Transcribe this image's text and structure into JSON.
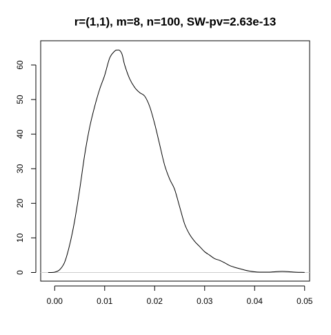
{
  "chart_data": {
    "type": "line",
    "title": "r=(1,1), m=8, n=100, SW-pv=2.63e-13",
    "xlabel": "",
    "ylabel": "",
    "xlim": [
      -0.0028,
      0.051
    ],
    "ylim": [
      -2.5,
      67
    ],
    "grid": false,
    "zero_line": true,
    "xticks": [
      0.0,
      0.01,
      0.02,
      0.03,
      0.04,
      0.05
    ],
    "xtick_labels": [
      "0.00",
      "0.01",
      "0.02",
      "0.03",
      "0.04",
      "0.05"
    ],
    "yticks": [
      0,
      10,
      20,
      30,
      40,
      50,
      60
    ],
    "ytick_labels": [
      "0",
      "10",
      "20",
      "30",
      "40",
      "50",
      "60"
    ],
    "series": [
      {
        "color": "#000000",
        "x": [
          -0.0013,
          0.0,
          0.001,
          0.002,
          0.003,
          0.004,
          0.005,
          0.006,
          0.007,
          0.008,
          0.009,
          0.01,
          0.011,
          0.012,
          0.0125,
          0.013,
          0.0135,
          0.014,
          0.015,
          0.016,
          0.017,
          0.018,
          0.019,
          0.02,
          0.021,
          0.022,
          0.023,
          0.024,
          0.025,
          0.026,
          0.027,
          0.028,
          0.029,
          0.03,
          0.031,
          0.032,
          0.033,
          0.034,
          0.035,
          0.036,
          0.037,
          0.038,
          0.039,
          0.04,
          0.041,
          0.042,
          0.043,
          0.044,
          0.045,
          0.046,
          0.047,
          0.048,
          0.049,
          0.05
        ],
        "y": [
          0,
          0.1,
          0.8,
          3,
          8,
          15,
          24,
          34,
          42,
          48,
          53,
          57,
          62,
          64,
          64.3,
          64.2,
          63,
          60,
          56,
          53.5,
          52,
          51,
          48,
          43,
          37,
          31,
          27,
          24,
          19,
          14,
          11,
          9,
          7.5,
          6,
          5,
          4,
          3.5,
          2.8,
          2,
          1.5,
          1.1,
          0.7,
          0.4,
          0.2,
          0.1,
          0.1,
          0.1,
          0.2,
          0.3,
          0.3,
          0.2,
          0.1,
          0.05,
          0.02
        ]
      }
    ]
  }
}
